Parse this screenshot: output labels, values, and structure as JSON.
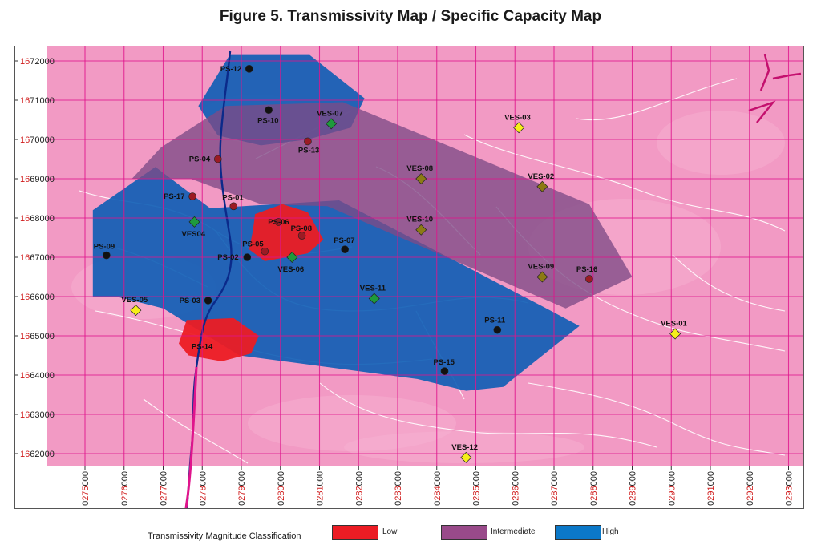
{
  "title": "Figure  5.  Transmissivity Map / Specific Capacity Map",
  "axes": {
    "y_ticks": [
      "1672000",
      "1671000",
      "1670000",
      "1669000",
      "1668000",
      "1667000",
      "1666000",
      "1665000",
      "1664000",
      "1663000",
      "1662000"
    ],
    "x_ticks": [
      "0275000",
      "0276000",
      "0277000",
      "0278000",
      "0279000",
      "0280000",
      "0281000",
      "0282000",
      "0283000",
      "0284000",
      "0285000",
      "0286000",
      "0287000",
      "0288000",
      "0289000",
      "0290000",
      "0291000",
      "0292000",
      "0293000"
    ]
  },
  "colors": {
    "background": "#f29ac4",
    "grid": "#e0148c",
    "low": "#ec1c24",
    "intermediate": "#8d4a86",
    "high": "#1565c0",
    "ves_yellow": "#f6ee19",
    "ves_olive": "#8c7a14",
    "ves_green": "#1e9a3c",
    "well_dark": "#111111",
    "well_red": "#9b1b24"
  },
  "wells": [
    {
      "label": "PS-12",
      "easting": 279200,
      "northing": 1671800,
      "kind": "dark"
    },
    {
      "label": "PS-10",
      "easting": 279700,
      "northing": 1670750,
      "kind": "dark"
    },
    {
      "label": "PS-13",
      "easting": 280700,
      "northing": 1669950,
      "kind": "red"
    },
    {
      "label": "PS-04",
      "easting": 278400,
      "northing": 1669500,
      "kind": "red"
    },
    {
      "label": "PS-17",
      "easting": 277750,
      "northing": 1668550,
      "kind": "red"
    },
    {
      "label": "PS-01",
      "easting": 278800,
      "northing": 1668300,
      "kind": "red"
    },
    {
      "label": "PS-06",
      "easting": 279950,
      "northing": 1667900,
      "kind": "red"
    },
    {
      "label": "PS-08",
      "easting": 280550,
      "northing": 1667550,
      "kind": "red"
    },
    {
      "label": "PS-05",
      "easting": 279600,
      "northing": 1667150,
      "kind": "red"
    },
    {
      "label": "PS-02",
      "easting": 279150,
      "northing": 1667000,
      "kind": "dark"
    },
    {
      "label": "PS-07",
      "easting": 281650,
      "northing": 1667200,
      "kind": "dark"
    },
    {
      "label": "PS-09",
      "easting": 275550,
      "northing": 1667050,
      "kind": "dark"
    },
    {
      "label": "PS-03",
      "easting": 278150,
      "northing": 1665900,
      "kind": "dark"
    },
    {
      "label": "PS-14",
      "easting": 278300,
      "northing": 1664750,
      "kind": "none"
    },
    {
      "label": "PS-11",
      "easting": 285550,
      "northing": 1665150,
      "kind": "dark"
    },
    {
      "label": "PS-15",
      "easting": 284200,
      "northing": 1664100,
      "kind": "dark"
    },
    {
      "label": "PS-16",
      "easting": 287900,
      "northing": 1666450,
      "kind": "red"
    }
  ],
  "ves_points": [
    {
      "label": "VES-07",
      "easting": 281300,
      "northing": 1670400,
      "kind": "green"
    },
    {
      "label": "VES-03",
      "easting": 286100,
      "northing": 1670300,
      "kind": "yellow"
    },
    {
      "label": "VES-08",
      "easting": 283600,
      "northing": 1669000,
      "kind": "olive"
    },
    {
      "label": "VES-02",
      "easting": 286700,
      "northing": 1668800,
      "kind": "olive"
    },
    {
      "label": "VES04",
      "easting": 277800,
      "northing": 1667900,
      "kind": "green"
    },
    {
      "label": "VES-10",
      "easting": 283600,
      "northing": 1667700,
      "kind": "olive"
    },
    {
      "label": "VES-06",
      "easting": 280300,
      "northing": 1667000,
      "kind": "green"
    },
    {
      "label": "VES-09",
      "easting": 286700,
      "northing": 1666500,
      "kind": "olive"
    },
    {
      "label": "VES-11",
      "easting": 282400,
      "northing": 1665950,
      "kind": "green"
    },
    {
      "label": "VES-05",
      "easting": 276300,
      "northing": 1665650,
      "kind": "yellow"
    },
    {
      "label": "VES-01",
      "easting": 290100,
      "northing": 1665050,
      "kind": "yellow"
    },
    {
      "label": "VES-12",
      "easting": 284750,
      "northing": 1661900,
      "kind": "yellow"
    }
  ],
  "zones": {
    "intermediate": [
      [
        276200,
        1669000
      ],
      [
        276950,
        1669800
      ],
      [
        278600,
        1670850
      ],
      [
        281600,
        1670950
      ],
      [
        287900,
        1668350
      ],
      [
        289000,
        1666500
      ],
      [
        287300,
        1665700
      ],
      [
        281200,
        1668300
      ],
      [
        279500,
        1668350
      ],
      [
        277700,
        1669000
      ]
    ],
    "high": [
      [
        275200,
        1666000
      ],
      [
        275200,
        1668200
      ],
      [
        276800,
        1669300
      ],
      [
        278200,
        1668250
      ],
      [
        281500,
        1668450
      ],
      [
        286800,
        1665700
      ],
      [
        287650,
        1665250
      ],
      [
        285700,
        1663700
      ],
      [
        284750,
        1663600
      ],
      [
        283500,
        1663900
      ],
      [
        278950,
        1664500
      ],
      [
        277000,
        1665700
      ],
      [
        275800,
        1666000
      ]
    ],
    "high_north": [
      [
        277900,
        1670850
      ],
      [
        278700,
        1672150
      ],
      [
        280750,
        1672150
      ],
      [
        282150,
        1671050
      ],
      [
        281800,
        1670300
      ],
      [
        280700,
        1670000
      ],
      [
        279500,
        1669850
      ],
      [
        278400,
        1670100
      ]
    ],
    "low_central": [
      [
        279350,
        1668100
      ],
      [
        280050,
        1668350
      ],
      [
        280700,
        1668150
      ],
      [
        281100,
        1667450
      ],
      [
        280700,
        1667100
      ],
      [
        279600,
        1666900
      ],
      [
        279200,
        1667200
      ],
      [
        279300,
        1667700
      ]
    ],
    "low_south": [
      [
        277400,
        1664800
      ],
      [
        277600,
        1665400
      ],
      [
        278800,
        1665450
      ],
      [
        279450,
        1665000
      ],
      [
        279250,
        1664550
      ],
      [
        278500,
        1664350
      ],
      [
        277650,
        1664500
      ]
    ]
  },
  "legend": {
    "title": "Transmissivity Magnitude Classification",
    "items": [
      {
        "label": "Low",
        "color": "#ec1c24"
      },
      {
        "label": "Intermediate",
        "color": "#994a8a"
      },
      {
        "label": "High",
        "color": "#0b78c8"
      }
    ]
  }
}
